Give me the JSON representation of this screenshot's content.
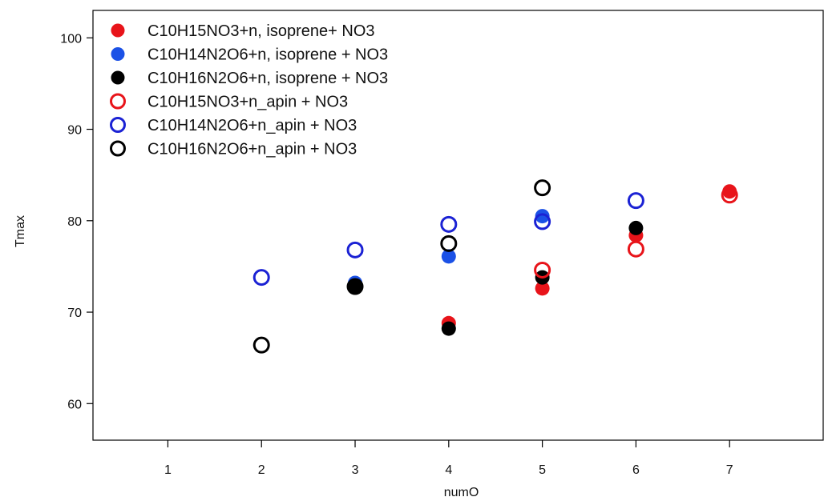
{
  "chart_data": {
    "type": "scatter",
    "xlabel": "numO",
    "ylabel": "Tmax",
    "xlim": [
      0.2,
      8.0
    ],
    "ylim": [
      56,
      103
    ],
    "xticks": [
      1,
      2,
      3,
      4,
      5,
      6,
      7
    ],
    "yticks": [
      60,
      70,
      80,
      90,
      100
    ],
    "grid": false,
    "legend_position": "top-left",
    "series": [
      {
        "name": "C10H15NO3+n, isoprene+ NO3",
        "color": "#e8141a",
        "marker": "filled",
        "points": [
          {
            "x": 4,
            "y": 68.8
          },
          {
            "x": 5,
            "y": 72.6
          },
          {
            "x": 6,
            "y": 78.4
          },
          {
            "x": 7,
            "y": 83.2
          }
        ]
      },
      {
        "name": "C10H14N2O6+n, isoprene + NO3",
        "color": "#1b51e6",
        "marker": "filled",
        "points": [
          {
            "x": 3,
            "y": 73.2
          },
          {
            "x": 4,
            "y": 76.1
          },
          {
            "x": 5,
            "y": 80.5
          }
        ]
      },
      {
        "name": "C10H16N2O6+n, isoprene + NO3",
        "color": "#000000",
        "marker": "filled",
        "points": [
          {
            "x": 3,
            "y": 72.9
          },
          {
            "x": 4,
            "y": 68.2
          },
          {
            "x": 5,
            "y": 73.8
          },
          {
            "x": 6,
            "y": 79.2
          }
        ]
      },
      {
        "name": "C10H15NO3+n_apin + NO3",
        "color": "#e8141a",
        "marker": "open",
        "points": [
          {
            "x": 5,
            "y": 74.6
          },
          {
            "x": 6,
            "y": 76.9
          },
          {
            "x": 7,
            "y": 82.8
          }
        ]
      },
      {
        "name": "C10H14N2O6+n_apin + NO3",
        "color": "#1b22d4",
        "marker": "open",
        "points": [
          {
            "x": 2,
            "y": 73.8
          },
          {
            "x": 3,
            "y": 76.8
          },
          {
            "x": 4,
            "y": 79.6
          },
          {
            "x": 5,
            "y": 79.9
          },
          {
            "x": 6,
            "y": 82.2
          }
        ]
      },
      {
        "name": "C10H16N2O6+n_apin + NO3",
        "color": "#000000",
        "marker": "open",
        "points": [
          {
            "x": 2,
            "y": 66.4
          },
          {
            "x": 3,
            "y": 72.8
          },
          {
            "x": 4,
            "y": 77.5
          },
          {
            "x": 5,
            "y": 83.6
          }
        ]
      }
    ]
  }
}
